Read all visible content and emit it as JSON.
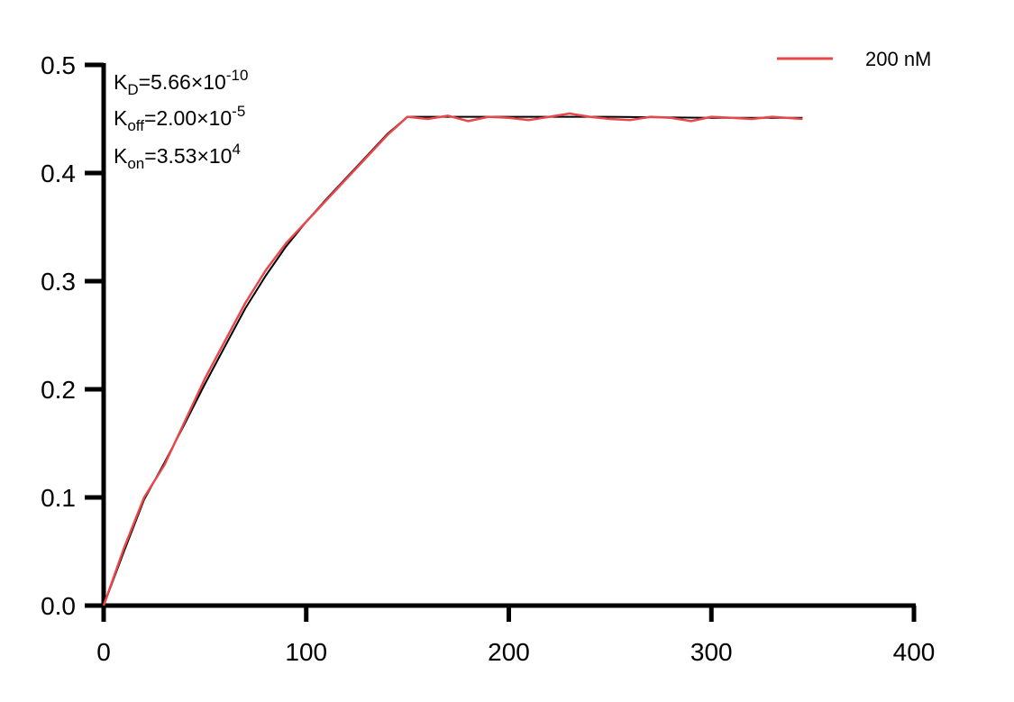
{
  "chart_data": {
    "type": "line",
    "title": "",
    "xlabel": "",
    "ylabel": "",
    "xlim": [
      0,
      400
    ],
    "ylim": [
      0,
      0.5
    ],
    "x_ticks": [
      "0",
      "100",
      "200",
      "300",
      "400"
    ],
    "y_ticks": [
      "0.0",
      "0.1",
      "0.2",
      "0.3",
      "0.4",
      "0.5"
    ],
    "grid": false,
    "legend": {
      "placement": "top-right",
      "entries": [
        "200 nM"
      ]
    },
    "annotations": [
      {
        "main": "K",
        "sub": "D",
        "text": "=5.66×10",
        "sup": "-10"
      },
      {
        "main": "K",
        "sub": "off",
        "text": "=2.00×10",
        "sup": "-5"
      },
      {
        "main": "K",
        "sub": "on",
        "text": "=3.53×10",
        "sup": "4"
      }
    ],
    "series": [
      {
        "name": "200 nM",
        "color": "#e8474b",
        "role": "measured",
        "x": [
          0,
          10,
          20,
          30,
          40,
          50,
          60,
          70,
          80,
          90,
          100,
          110,
          120,
          130,
          140,
          150,
          160,
          170,
          180,
          190,
          200,
          210,
          220,
          230,
          240,
          250,
          260,
          270,
          280,
          290,
          300,
          310,
          320,
          330,
          345
        ],
        "y": [
          0.0,
          0.053,
          0.1,
          0.13,
          0.17,
          0.21,
          0.245,
          0.28,
          0.31,
          0.335,
          0.355,
          0.375,
          0.395,
          0.415,
          0.435,
          0.452,
          0.45,
          0.453,
          0.448,
          0.452,
          0.451,
          0.449,
          0.452,
          0.455,
          0.452,
          0.45,
          0.449,
          0.452,
          0.451,
          0.448,
          0.452,
          0.451,
          0.45,
          0.452,
          0.45
        ]
      },
      {
        "name": "",
        "color": "#000000",
        "role": "fit",
        "x": [
          0,
          10,
          20,
          30,
          40,
          50,
          60,
          70,
          80,
          90,
          100,
          110,
          120,
          130,
          140,
          150,
          200,
          250,
          300,
          345
        ],
        "y": [
          0.0,
          0.05,
          0.098,
          0.132,
          0.168,
          0.205,
          0.24,
          0.275,
          0.305,
          0.332,
          0.355,
          0.376,
          0.396,
          0.416,
          0.436,
          0.452,
          0.452,
          0.452,
          0.451,
          0.451
        ]
      }
    ]
  }
}
